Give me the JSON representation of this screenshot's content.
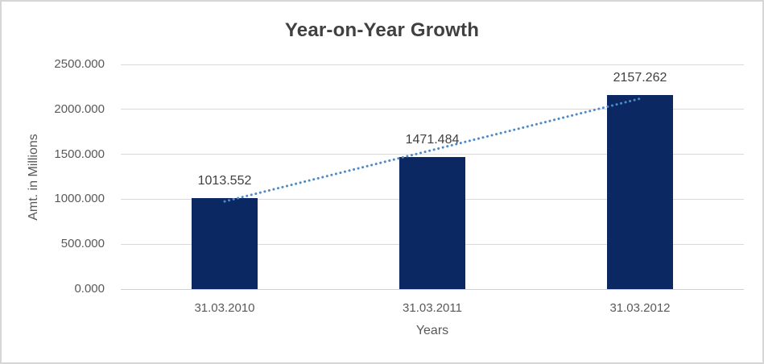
{
  "chart_data": {
    "type": "bar",
    "title": "Year-on-Year Growth",
    "xlabel": "Years",
    "ylabel": "Amt. in Millions",
    "categories": [
      "31.03.2010",
      "31.03.2011",
      "31.03.2012"
    ],
    "values": [
      1013.552,
      1471.484,
      2157.262
    ],
    "data_labels": [
      "1013.552",
      "1471.484",
      "2157.262"
    ],
    "ylim": [
      0,
      2500
    ],
    "ytick_step": 500,
    "ytick_labels": [
      "0.000",
      "500.000",
      "1000.000",
      "1500.000",
      "2000.000",
      "2500.000"
    ],
    "grid": true,
    "legend": "none",
    "trendline": {
      "type": "linear",
      "style": "dotted"
    },
    "colors": {
      "bar": "#0c2862",
      "trendline": "#4e8ac8",
      "gridline": "#d9d9d9",
      "title_text": "#404040",
      "tick_text": "#595959",
      "label_text": "#404040",
      "border": "#d6d6d6",
      "background": "#ffffff"
    }
  }
}
